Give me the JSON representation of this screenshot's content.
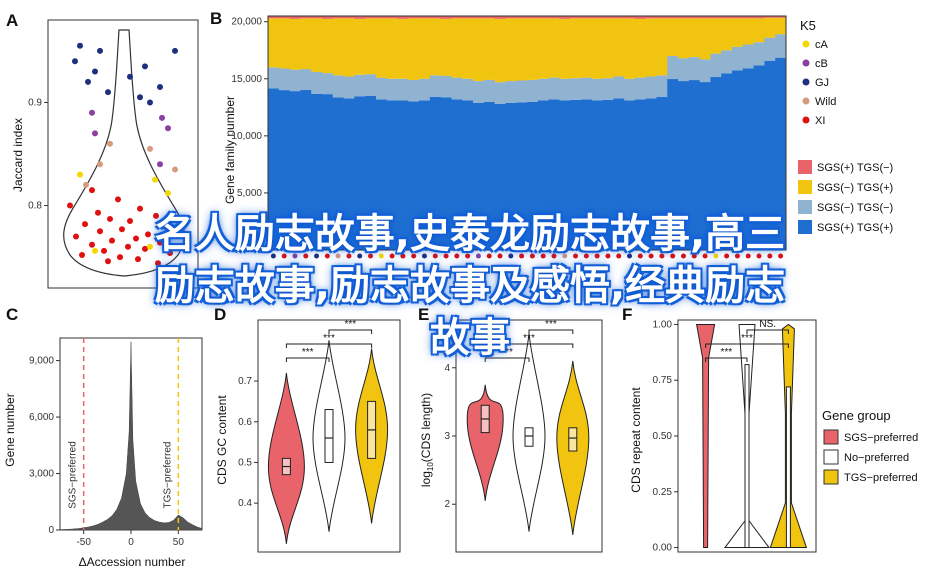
{
  "overlay_title": [
    "名人励志故事,史泰龙励志故事,高三",
    "励志故事,励志故事及感悟,经典励志",
    "故事"
  ],
  "colors": {
    "SGSp_TGSm": "#e8646a",
    "SGSm_TGSp": "#f1c40f",
    "SGSm_TGSm": "#8fb3d0",
    "SGSp_TGSp": "#1f6fd1",
    "cA": "#f5d800",
    "cB": "#8b3fa0",
    "GJ": "#1f2f80",
    "Wild": "#d89a7e",
    "XI": "#e01010",
    "sgs_pref": "#e8646a",
    "no_pref": "#ffffff",
    "tgs_pref": "#f1c40f",
    "hist": "#555555"
  },
  "chart_data": [
    {
      "panel": "A",
      "type": "scatter",
      "ylabel": "Jaccard index",
      "y_ticks": [
        "0.8",
        "0.9"
      ],
      "ylim": [
        0.72,
        0.98
      ],
      "groups": [
        "cA",
        "cB",
        "GJ",
        "Wild",
        "XI"
      ],
      "points_summary": "Jaccard index per accession over a violin outline"
    },
    {
      "panel": "B",
      "type": "area",
      "ylabel": "Gene family number",
      "y_ticks": [
        "5,000",
        "10,000",
        "15,000",
        "20,000"
      ],
      "ylim": [
        0,
        20500
      ],
      "legend_title": "K5",
      "legend_groups": [
        "cA",
        "cB",
        "GJ",
        "Wild",
        "XI"
      ],
      "series_names": [
        "SGS(+) TGS(−)",
        "SGS(−) TGS(+)",
        "SGS(−) TGS(−)",
        "SGS(+) TGS(+)"
      ],
      "n_accessions": 48,
      "series_blue_pct": [
        0.67,
        0.66,
        0.66,
        0.67,
        0.65,
        0.66,
        0.64,
        0.64,
        0.65,
        0.65,
        0.64,
        0.64,
        0.64,
        0.64,
        0.64,
        0.65,
        0.65,
        0.64,
        0.64,
        0.63,
        0.63,
        0.63,
        0.63,
        0.63,
        0.63,
        0.64,
        0.64,
        0.64,
        0.64,
        0.64,
        0.64,
        0.64,
        0.64,
        0.64,
        0.64,
        0.64,
        0.65,
        0.66,
        0.66,
        0.66,
        0.66,
        0.66,
        0.67,
        0.67,
        0.67,
        0.68,
        0.69,
        0.69
      ],
      "series_lightblue_top": [
        16000,
        15900,
        15800,
        15850,
        15600,
        15500,
        15300,
        15200,
        15350,
        15400,
        15100,
        15000,
        15000,
        14900,
        15000,
        15300,
        15250,
        15100,
        15000,
        14800,
        14900,
        14700,
        14800,
        14850,
        14900,
        15000,
        15100,
        15000,
        15050,
        15100,
        15000,
        15050,
        15200,
        15000,
        15100,
        15200,
        15300,
        17000,
        16800,
        16900,
        16700,
        17200,
        17500,
        17800,
        18000,
        18200,
        18600,
        18900
      ],
      "series_yellow_top": [
        20300,
        20300,
        20250,
        20300,
        20300,
        20250,
        20300,
        20300,
        20250,
        20300,
        20300,
        20300,
        20250,
        20300,
        20300,
        20300,
        20250,
        20300,
        20300,
        20300,
        20300,
        20250,
        20300,
        20300,
        20300,
        20300,
        20300,
        20250,
        20300,
        20300,
        20300,
        20300,
        20300,
        20300,
        20250,
        20300,
        20300,
        20300,
        20300,
        20300,
        20300,
        20300,
        20300,
        20300,
        20300,
        20300,
        20350,
        20350
      ],
      "total": 20500
    },
    {
      "panel": "C",
      "type": "bar",
      "xlabel": "ΔAccession number",
      "ylabel": "Gene number",
      "x_ticks": [
        "-50",
        "0",
        "50"
      ],
      "y_ticks": [
        "0",
        "3,000",
        "6,000",
        "9,000"
      ],
      "xlim": [
        -75,
        75
      ],
      "ylim": [
        0,
        10200
      ],
      "annotations": [
        "SGS−preferred",
        "TGS−preferred"
      ],
      "ref_lines": [
        -50,
        50
      ],
      "x": [
        -75,
        -70,
        -65,
        -60,
        -55,
        -50,
        -45,
        -40,
        -35,
        -30,
        -25,
        -20,
        -15,
        -10,
        -5,
        -2,
        0,
        2,
        5,
        10,
        15,
        20,
        25,
        30,
        35,
        40,
        45,
        50,
        55,
        60,
        65,
        70,
        75
      ],
      "values": [
        20,
        30,
        40,
        60,
        80,
        120,
        160,
        220,
        300,
        420,
        560,
        760,
        1100,
        1700,
        3000,
        5200,
        10000,
        4800,
        2600,
        1400,
        900,
        650,
        500,
        420,
        380,
        400,
        520,
        800,
        650,
        420,
        280,
        160,
        80
      ]
    },
    {
      "panel": "D",
      "type": "violin",
      "ylabel": "CDS GC content",
      "y_ticks": [
        "0.4",
        "0.5",
        "0.6",
        "0.7"
      ],
      "ylim": [
        0.28,
        0.85
      ],
      "groups": [
        "SGS−preferred",
        "No−preferred",
        "TGS−preferred"
      ],
      "median": [
        0.49,
        0.56,
        0.58
      ],
      "q1": [
        0.47,
        0.5,
        0.51
      ],
      "q3": [
        0.51,
        0.63,
        0.65
      ],
      "min": [
        0.3,
        0.33,
        0.35
      ],
      "max": [
        0.72,
        0.8,
        0.78
      ],
      "significance": [
        "***",
        "***",
        "***"
      ]
    },
    {
      "panel": "E",
      "type": "violin",
      "ylabel": "log10(CDS length)",
      "y_ticks": [
        "2",
        "3",
        "4"
      ],
      "ylim": [
        1.3,
        4.7
      ],
      "groups": [
        "SGS−preferred",
        "No−preferred",
        "TGS−preferred"
      ],
      "median": [
        3.25,
        3.0,
        2.97
      ],
      "q1": [
        3.05,
        2.85,
        2.78
      ],
      "q3": [
        3.45,
        3.12,
        3.12
      ],
      "min": [
        2.05,
        1.6,
        1.55
      ],
      "max": [
        3.75,
        4.5,
        4.1
      ],
      "significance": [
        "***",
        "***",
        "***"
      ]
    },
    {
      "panel": "F",
      "type": "violin",
      "ylabel": "CDS repeat content",
      "y_ticks": [
        "0.00",
        "0.25",
        "0.50",
        "0.75",
        "1.00"
      ],
      "ylim": [
        -0.02,
        1.02
      ],
      "groups": [
        "SGS−preferred",
        "No−preferred",
        "TGS−preferred"
      ],
      "legend_title": "Gene group",
      "significance": [
        "***",
        "***",
        "NS."
      ]
    }
  ]
}
